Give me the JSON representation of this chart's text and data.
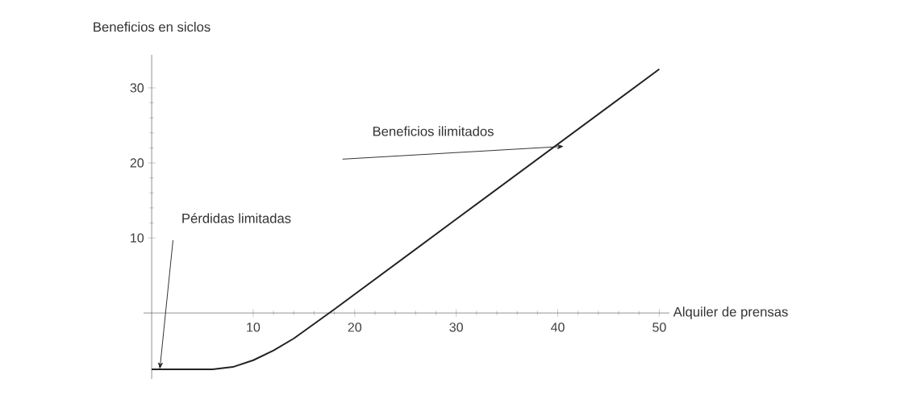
{
  "chart_data": {
    "type": "line",
    "xlabel": "Alquiler de prensas",
    "ylabel": "Beneficios en siclos",
    "x": [
      0,
      6,
      8,
      10,
      12,
      14,
      18,
      30,
      40,
      50
    ],
    "series": [
      {
        "color": "#222222",
        "values": [
          -7.5,
          -7.5,
          -7.2,
          -6.3,
          -5.0,
          -3.4,
          0.5,
          12.5,
          22.5,
          32.5
        ]
      }
    ],
    "xlim": [
      -0.8,
      51
    ],
    "ylim": [
      -8.8,
      34.4
    ],
    "xticks": [
      10,
      20,
      30,
      40,
      50
    ],
    "yticks": [
      10,
      20,
      30
    ],
    "annotations": [
      "Beneficios ilimitados",
      "Pérdidas limitadas"
    ],
    "grid": false,
    "marker": "none",
    "line_style": "solid"
  }
}
